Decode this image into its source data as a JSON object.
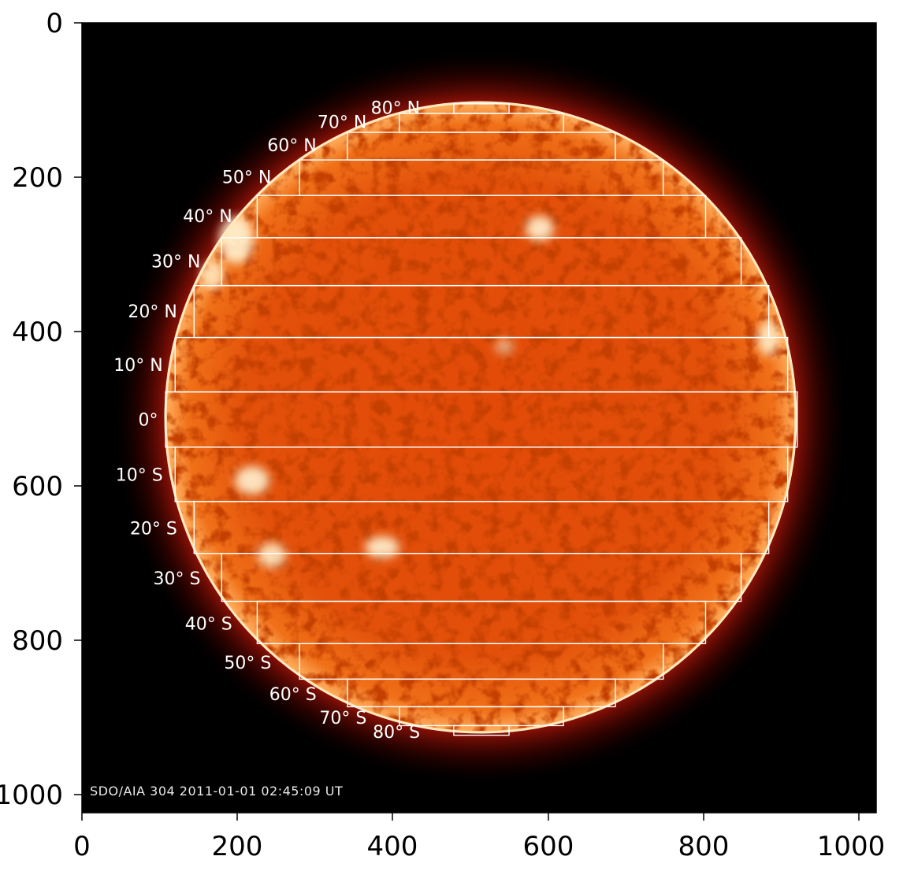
{
  "image": {
    "caption": "SDO/AIA  304      2011-01-01 02:45:09 UT",
    "colors": {
      "background": "#000000",
      "photosphere": "#e8540c",
      "limb": "#ffe9c0",
      "grid": "#ffffff"
    }
  },
  "axes": {
    "x_ticks": [
      "0",
      "200",
      "400",
      "600",
      "800",
      "1000"
    ],
    "y_ticks": [
      "0",
      "200",
      "400",
      "600",
      "800",
      "1000"
    ]
  },
  "sun": {
    "center": [
      514,
      514
    ],
    "radius_px": 408
  },
  "latitude_bands": [
    {
      "label": "80° N",
      "lat": 80
    },
    {
      "label": "70° N",
      "lat": 70
    },
    {
      "label": "60° N",
      "lat": 60
    },
    {
      "label": "50° N",
      "lat": 50
    },
    {
      "label": "40° N",
      "lat": 40
    },
    {
      "label": "30° N",
      "lat": 30
    },
    {
      "label": "20° N",
      "lat": 20
    },
    {
      "label": "10° N",
      "lat": 10
    },
    {
      "label": "0°",
      "lat": 0
    },
    {
      "label": "10° S",
      "lat": -10
    },
    {
      "label": "20° S",
      "lat": -20
    },
    {
      "label": "30° S",
      "lat": -30
    },
    {
      "label": "40° S",
      "lat": -40
    },
    {
      "label": "50° S",
      "lat": -50
    },
    {
      "label": "60° S",
      "lat": -60
    },
    {
      "label": "70° S",
      "lat": -70
    },
    {
      "label": "80° S",
      "lat": -80
    }
  ]
}
